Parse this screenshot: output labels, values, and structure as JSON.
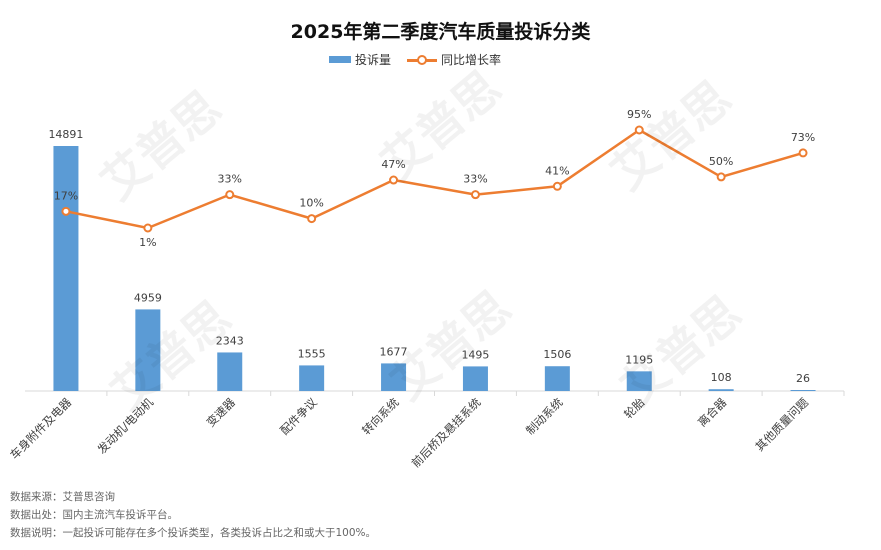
{
  "chart_data": {
    "type": "bar",
    "title": "2025年第二季度汽车质量投诉分类",
    "categories": [
      "车身附件及电器",
      "发动机/电动机",
      "变速器",
      "配件争议",
      "转向系统",
      "前后桥及悬挂系统",
      "制动系统",
      "轮胎",
      "离合器",
      "其他质量问题"
    ],
    "series": [
      {
        "name": "投诉量",
        "type": "bar",
        "color": "#5B9BD5",
        "values": [
          14891,
          4959,
          2343,
          1555,
          1677,
          1495,
          1506,
          1195,
          108,
          26
        ]
      },
      {
        "name": "同比增长率",
        "type": "line",
        "color": "#ED7D31",
        "values": [
          17,
          1,
          33,
          10,
          47,
          33,
          41,
          95,
          50,
          73
        ],
        "labels": [
          "17%",
          "1%",
          "33%",
          "10%",
          "47%",
          "33%",
          "41%",
          "95%",
          "50%",
          "73%"
        ]
      }
    ],
    "legend": "top-center",
    "grid": false
  },
  "notes": {
    "source": "数据来源：艾普思咨询",
    "origin": "数据出处：国内主流汽车投诉平台。",
    "explanation": "数据说明：一起投诉可能存在多个投诉类型，各类投诉占比之和或大于100%。"
  },
  "watermark": "艾普思"
}
